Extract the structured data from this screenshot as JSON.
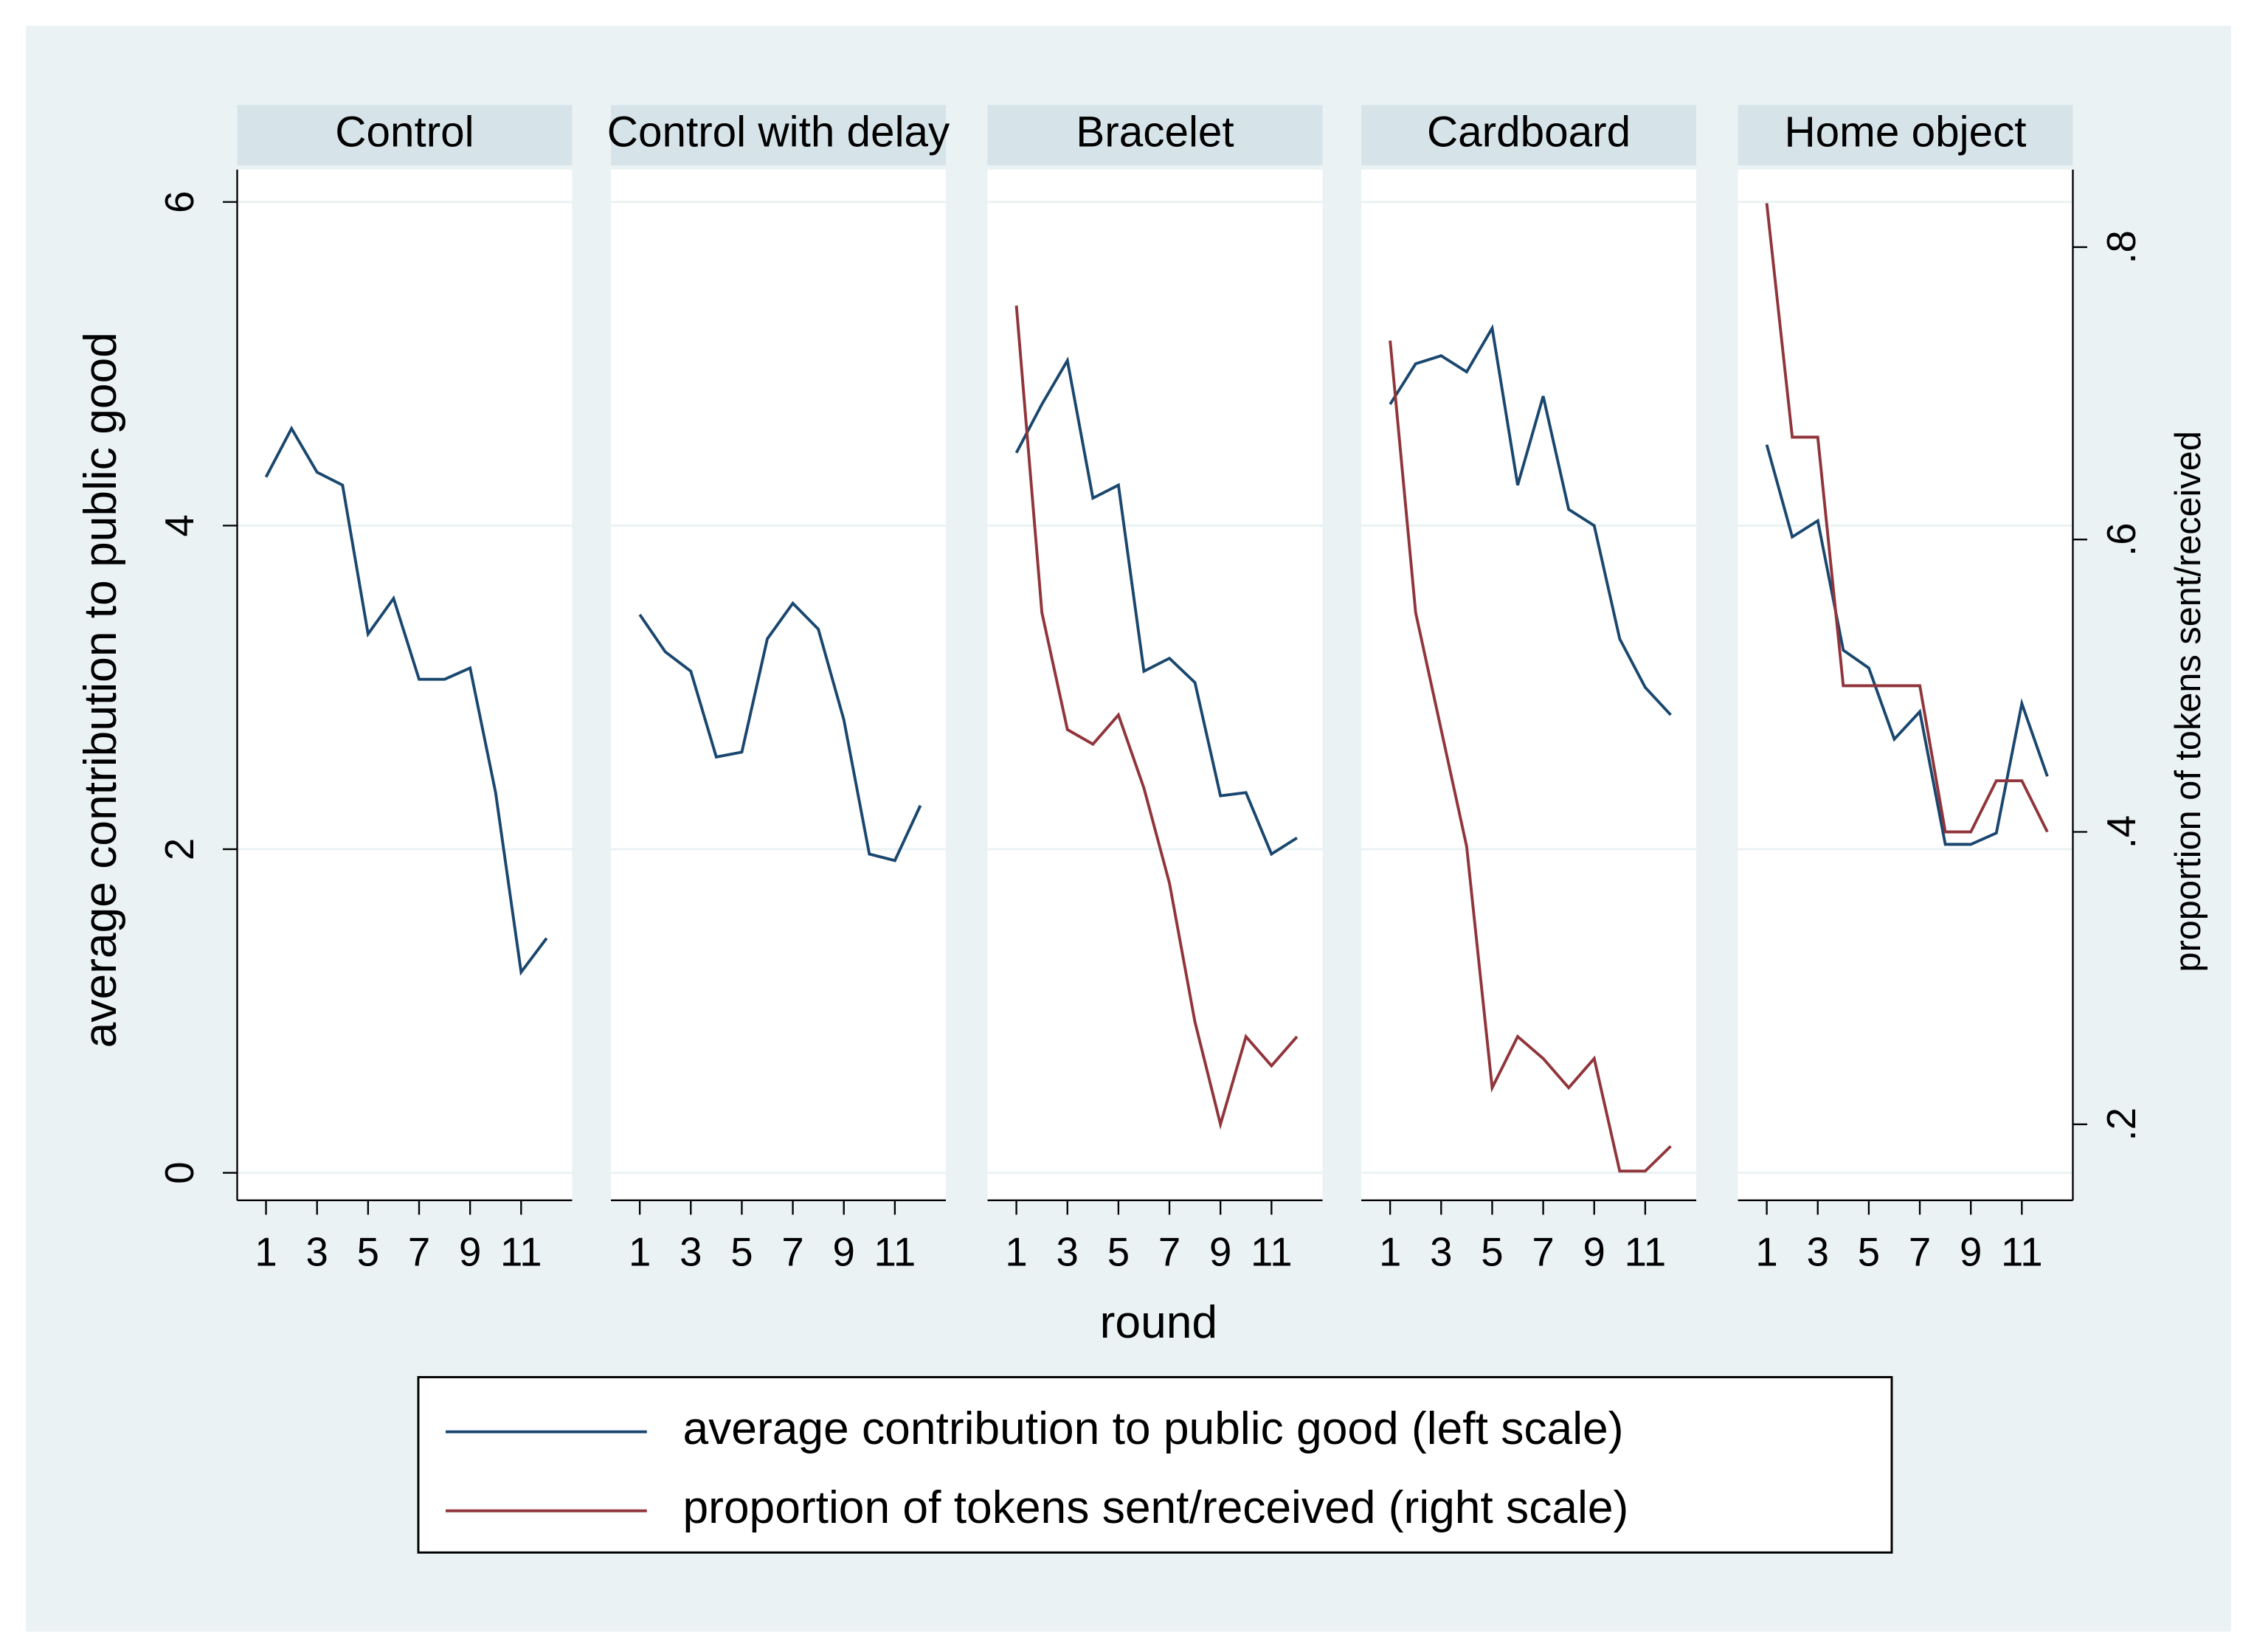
{
  "chart_data": {
    "type": "line",
    "xlabel": "round",
    "ylabel": "average contribution to public good",
    "y2label": "proportion of tokens sent/received",
    "x": [
      1,
      2,
      3,
      4,
      5,
      6,
      7,
      8,
      9,
      10,
      11,
      12
    ],
    "xlim": [
      -0.13,
      13
    ],
    "xticks": [
      1,
      3,
      5,
      7,
      9,
      11
    ],
    "ylim": [
      -0.17,
      6.2
    ],
    "yticks": [
      0,
      2,
      4,
      6
    ],
    "y2lim": [
      0.148,
      0.853
    ],
    "y2ticks": [
      {
        "value": 0.2,
        "label": ".2"
      },
      {
        "value": 0.4,
        "label": ".4"
      },
      {
        "value": 0.6,
        "label": ".6"
      },
      {
        "value": 0.8,
        "label": ".8"
      }
    ],
    "grid": true,
    "series": [
      {
        "name": "average contribution to public good (left scale)",
        "color": "#1a476f"
      },
      {
        "name": "proportion of tokens sent/received (right scale)",
        "color": "#90353b",
        "axis": "y2"
      }
    ],
    "panels": [
      {
        "title": "Control",
        "series": [
          {
            "values": [
              4.3,
              4.6,
              4.33,
              4.25,
              3.33,
              3.55,
              3.05,
              3.05,
              3.12,
              2.35,
              1.24,
              1.45
            ]
          },
          {
            "values": [
              null,
              null,
              null,
              null,
              null,
              null,
              null,
              null,
              null,
              null,
              null,
              null
            ]
          }
        ]
      },
      {
        "title": "Control with delay",
        "series": [
          {
            "values": [
              3.45,
              3.22,
              3.1,
              2.57,
              2.6,
              3.3,
              3.52,
              3.36,
              2.8,
              1.97,
              1.93,
              2.27
            ]
          },
          {
            "values": [
              null,
              null,
              null,
              null,
              null,
              null,
              null,
              null,
              null,
              null,
              null,
              null
            ]
          }
        ]
      },
      {
        "title": "Bracelet",
        "series": [
          {
            "values": [
              4.45,
              4.75,
              5.02,
              4.17,
              4.25,
              3.1,
              3.18,
              3.03,
              2.33,
              2.35,
              1.97,
              2.07
            ]
          },
          {
            "values": [
              0.76,
              0.55,
              0.47,
              0.46,
              0.48,
              0.43,
              0.365,
              0.27,
              0.2,
              0.26,
              0.24,
              0.26
            ]
          }
        ]
      },
      {
        "title": "Cardboard",
        "series": [
          {
            "values": [
              4.75,
              5.0,
              5.05,
              4.95,
              5.22,
              4.25,
              4.8,
              4.1,
              4.0,
              3.3,
              3.0,
              2.83
            ]
          },
          {
            "values": [
              0.736,
              0.55,
              0.47,
              0.39,
              0.225,
              0.26,
              0.245,
              0.225,
              0.245,
              0.168,
              0.168,
              0.185
            ]
          }
        ]
      },
      {
        "title": "Home object",
        "series": [
          {
            "values": [
              4.5,
              3.93,
              4.03,
              3.23,
              3.12,
              2.68,
              2.85,
              2.03,
              2.03,
              2.1,
              2.9,
              2.45
            ]
          },
          {
            "values": [
              0.83,
              0.67,
              0.67,
              0.5,
              0.5,
              0.5,
              0.5,
              0.4,
              0.4,
              0.435,
              0.435,
              0.4
            ]
          }
        ]
      }
    ]
  }
}
